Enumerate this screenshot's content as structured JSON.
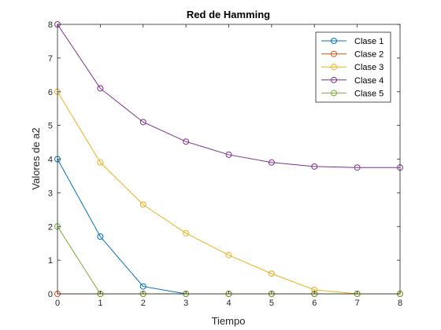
{
  "chart_data": {
    "type": "line",
    "title": "Red de Hamming",
    "xlabel": "Tiempo",
    "ylabel": "Valores de a2",
    "xlim": [
      0,
      8
    ],
    "ylim": [
      0,
      8
    ],
    "xticks": [
      "0",
      "1",
      "2",
      "3",
      "4",
      "5",
      "6",
      "7",
      "8"
    ],
    "yticks": [
      "0",
      "1",
      "2",
      "3",
      "4",
      "5",
      "6",
      "7",
      "8"
    ],
    "grid": false,
    "legend_position": "top-right",
    "x": [
      0,
      1,
      2,
      3,
      4,
      5,
      6,
      7,
      8
    ],
    "series": [
      {
        "name": "Clase 1",
        "color": "#0072BD",
        "marker": "circle",
        "values": [
          4.0,
          1.7,
          0.22,
          0,
          0,
          0,
          0,
          0,
          0
        ]
      },
      {
        "name": "Clase 2",
        "color": "#D95319",
        "marker": "circle",
        "values": [
          0,
          0,
          0,
          0,
          0,
          0,
          0,
          0,
          0
        ]
      },
      {
        "name": "Clase 3",
        "color": "#EDB120",
        "marker": "circle",
        "values": [
          6.0,
          3.9,
          2.65,
          1.8,
          1.15,
          0.6,
          0.12,
          0,
          0
        ]
      },
      {
        "name": "Clase 4",
        "color": "#7E2F8E",
        "marker": "circle",
        "values": [
          8.0,
          6.1,
          5.1,
          4.52,
          4.13,
          3.9,
          3.78,
          3.75,
          3.75
        ]
      },
      {
        "name": "Clase 5",
        "color": "#77AC30",
        "marker": "circle",
        "values": [
          2.0,
          0,
          0,
          0,
          0,
          0,
          0,
          0,
          0
        ]
      }
    ]
  }
}
